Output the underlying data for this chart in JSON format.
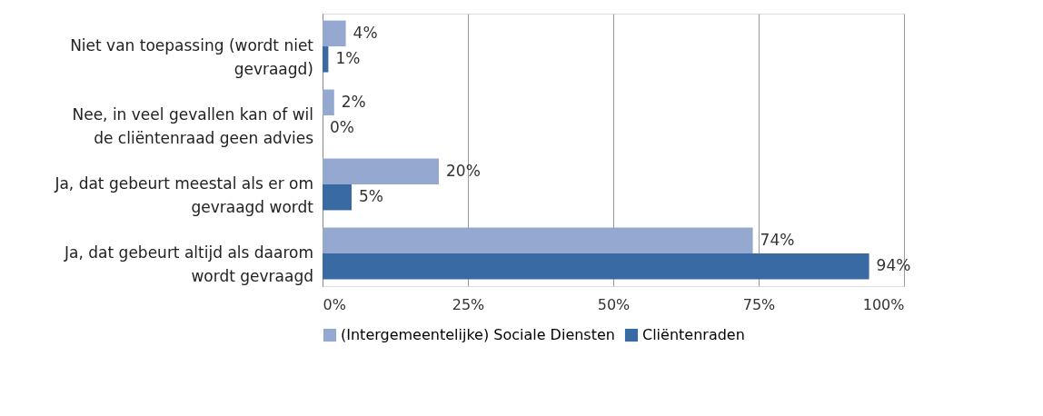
{
  "chart_data": {
    "type": "bar",
    "orientation": "horizontal",
    "categories": [
      "Niet van toepassing (wordt niet gevraagd)",
      "Nee, in veel gevallen kan of wil de cliëntenraad geen advies",
      "Ja, dat gebeurt meestal als er om gevraagd wordt",
      "Ja, dat gebeurt altijd als daarom wordt gevraagd"
    ],
    "series": [
      {
        "name": "(Intergemeentelijke) Sociale Diensten",
        "color": "#95a9d0",
        "values": [
          4,
          2,
          20,
          74
        ],
        "value_labels": [
          "4%",
          "2%",
          "20%",
          "74%"
        ]
      },
      {
        "name": "Cliëntenraden",
        "color": "#3a6aa3",
        "values": [
          1,
          0,
          5,
          94
        ],
        "value_labels": [
          "1%",
          "0%",
          "5%",
          "94%"
        ]
      }
    ],
    "xlim": [
      0,
      100
    ],
    "xticks": [
      {
        "value": 0,
        "label": "0%"
      },
      {
        "value": 25,
        "label": "25%"
      },
      {
        "value": 50,
        "label": "50%"
      },
      {
        "value": 75,
        "label": "75%"
      },
      {
        "value": 100,
        "label": "100%"
      }
    ],
    "grid": "x",
    "legend": "bottom"
  }
}
